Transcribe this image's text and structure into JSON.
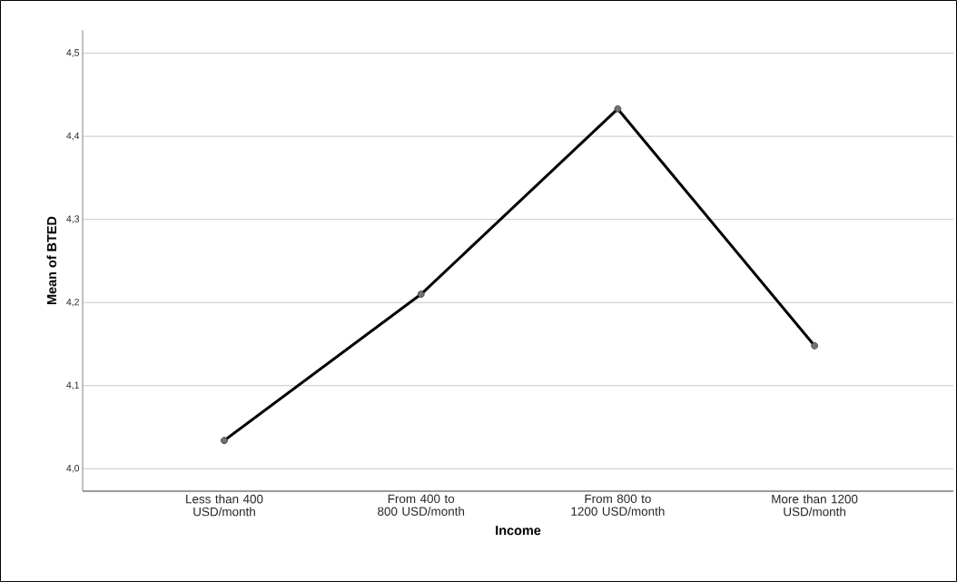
{
  "chart_data": {
    "type": "line",
    "xlabel": "Income",
    "ylabel": "Mean of BTED",
    "categories": [
      "Less than 400 USD/month",
      "From 400 to 800 USD/month",
      "From 800 to 1200 USD/month",
      "More than 1200 USD/month"
    ],
    "series": [
      {
        "color": "#000000",
        "values": [
          4.034,
          4.21,
          4.433,
          4.148
        ]
      }
    ],
    "ylim": [
      3.973,
      4.528
    ],
    "yticks": [
      {
        "value": 4.0,
        "label": "4,0"
      },
      {
        "value": 4.1,
        "label": "4,1"
      },
      {
        "value": 4.2,
        "label": "4,2"
      },
      {
        "value": 4.3,
        "label": "4,3"
      },
      {
        "value": 4.4,
        "label": "4,4"
      },
      {
        "value": 4.5,
        "label": "4,5"
      }
    ],
    "grid": "y",
    "marker": "circle",
    "line_style": "solid"
  }
}
